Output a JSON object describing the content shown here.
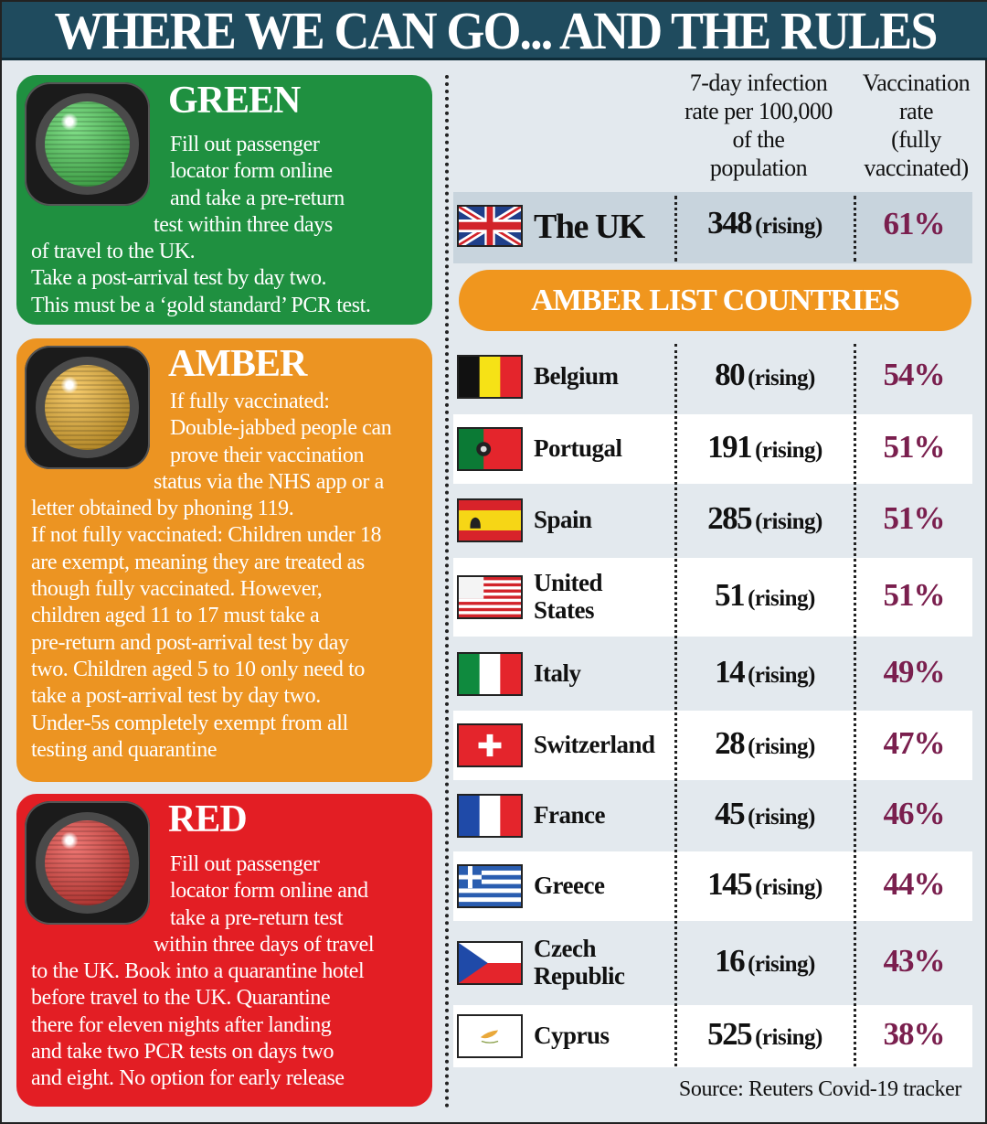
{
  "title": "WHERE WE CAN GO... AND THE RULES",
  "colors": {
    "green": "#1f9040",
    "amber": "#ec9422",
    "red": "#e31e24",
    "header": "#1f4b5e",
    "percent": "#7a1f4e"
  },
  "panels": [
    {
      "key": "green",
      "title": "GREEN",
      "light_color": "#3fcf4a",
      "lines": [
        "Fill out passenger",
        "locator form online",
        "and take a pre-return",
        "test within three days",
        "of travel to the UK.",
        "Take a post-arrival test by day two.",
        "This must be a ‘gold standard’ PCR test."
      ]
    },
    {
      "key": "amber",
      "title": "AMBER",
      "light_color": "#f2b01e",
      "lines": [
        "If fully vaccinated:",
        "Double-jabbed people can",
        "prove their vaccination",
        "status via the NHS app or a",
        "letter obtained by phoning 119.",
        "If not fully vaccinated: Children under 18",
        "are exempt, meaning they are treated as",
        "though fully vaccinated. However,",
        "children aged 11 to 17 must take a",
        "pre-return and post-arrival test by day",
        "two. Children aged 5 to 10 only need to",
        "take a post-arrival test by day two.",
        "Under-5s completely exempt from all",
        "testing and quarantine"
      ]
    },
    {
      "key": "red",
      "title": "RED",
      "light_color": "#e8302a",
      "lines": [
        "Fill out passenger",
        "locator form online and",
        "take a pre-return test",
        "within three days of travel",
        "to the UK. Book into a quarantine hotel",
        "before travel to the UK. Quarantine",
        "there for eleven nights after landing",
        "and take two PCR tests on days two",
        "and eight. No option for early release"
      ]
    }
  ],
  "table": {
    "col_infection": "7-day infection rate per 100,000 of the population",
    "col_infection_lines": [
      "7-day infection",
      "rate per 100,000",
      "of the",
      "population"
    ],
    "col_vacc_lines": [
      "Vaccination",
      "rate",
      "(fully",
      "vaccinated)"
    ],
    "uk": {
      "name": "The UK",
      "flag": "uk-flag",
      "rate": "348",
      "trend": "(rising)",
      "vacc": "61%"
    },
    "section_label": "AMBER LIST COUNTRIES",
    "rows": [
      {
        "name": "Belgium",
        "flag": "belgium-flag",
        "rate": "80",
        "trend": "(rising)",
        "vacc": "54%"
      },
      {
        "name": "Portugal",
        "flag": "portugal-flag",
        "rate": "191",
        "trend": "(rising)",
        "vacc": "51%"
      },
      {
        "name": "Spain",
        "flag": "spain-flag",
        "rate": "285",
        "trend": "(rising)",
        "vacc": "51%"
      },
      {
        "name": "United States",
        "flag": "usa-flag",
        "rate": "51",
        "trend": "(rising)",
        "vacc": "51%"
      },
      {
        "name": "Italy",
        "flag": "italy-flag",
        "rate": "14",
        "trend": "(rising)",
        "vacc": "49%"
      },
      {
        "name": "Switzerland",
        "flag": "switzerland-flag",
        "rate": "28",
        "trend": "(rising)",
        "vacc": "47%"
      },
      {
        "name": "France",
        "flag": "france-flag",
        "rate": "45",
        "trend": "(rising)",
        "vacc": "46%"
      },
      {
        "name": "Greece",
        "flag": "greece-flag",
        "rate": "145",
        "trend": "(rising)",
        "vacc": "44%"
      },
      {
        "name": "Czech Republic",
        "flag": "czech-flag",
        "rate": "16",
        "trend": "(rising)",
        "vacc": "43%"
      },
      {
        "name": "Cyprus",
        "flag": "cyprus-flag",
        "rate": "525",
        "trend": "(rising)",
        "vacc": "38%"
      }
    ],
    "source": "Source: Reuters Covid-19 tracker"
  }
}
